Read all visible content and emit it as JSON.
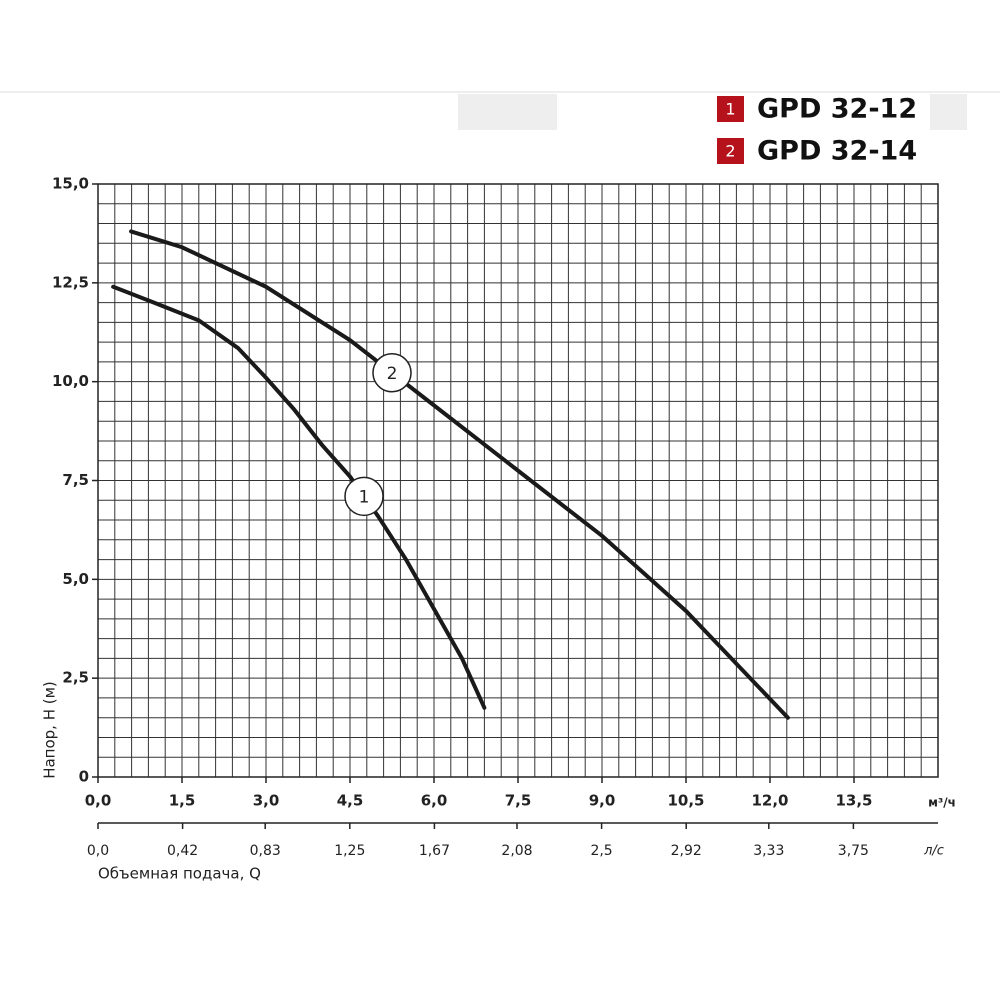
{
  "chart_data": {
    "type": "line",
    "xlabel": "Объемная подача, Q",
    "ylabel": "Напор, H (м)",
    "x_unit": "м³/ч",
    "x2_unit": "л/с",
    "xlim": [
      0,
      15
    ],
    "ylim": [
      0,
      15
    ],
    "x2lim": [
      0,
      4.17
    ],
    "grid": true,
    "legend_position": "top-right",
    "xticks": [
      {
        "value": 0,
        "label": "0,0"
      },
      {
        "value": 1.5,
        "label": "1,5"
      },
      {
        "value": 3,
        "label": "3,0"
      },
      {
        "value": 4.5,
        "label": "4,5"
      },
      {
        "value": 6,
        "label": "6,0"
      },
      {
        "value": 7.5,
        "label": "7,5"
      },
      {
        "value": 9,
        "label": "9,0"
      },
      {
        "value": 10.5,
        "label": "10,5"
      },
      {
        "value": 12,
        "label": "12,0"
      },
      {
        "value": 13.5,
        "label": "13,5"
      }
    ],
    "yticks": [
      {
        "value": 0,
        "label": "0"
      },
      {
        "value": 2.5,
        "label": "2,5"
      },
      {
        "value": 5,
        "label": "5,0"
      },
      {
        "value": 7.5,
        "label": "7,5"
      },
      {
        "value": 10,
        "label": "10,0"
      },
      {
        "value": 12.5,
        "label": "12,5"
      },
      {
        "value": 15,
        "label": "15,0"
      }
    ],
    "x2ticks": [
      {
        "value": 0,
        "label": "0,0"
      },
      {
        "value": 0.42,
        "label": "0,42"
      },
      {
        "value": 0.83,
        "label": "0,83"
      },
      {
        "value": 1.25,
        "label": "1,25"
      },
      {
        "value": 1.67,
        "label": "1,67"
      },
      {
        "value": 2.08,
        "label": "2,08"
      },
      {
        "value": 2.5,
        "label": "2,5"
      },
      {
        "value": 2.92,
        "label": "2,92"
      },
      {
        "value": 3.33,
        "label": "3,33"
      },
      {
        "value": 3.75,
        "label": "3,75"
      }
    ],
    "series": [
      {
        "name": "GPD 32-12",
        "label": "1",
        "color": "#1a1a1a",
        "badge_color": "#b5121b",
        "x": [
          0.27,
          1.0,
          1.8,
          2.5,
          3.0,
          3.5,
          4.0,
          4.5,
          5.0,
          5.5,
          6.0,
          6.5,
          6.9
        ],
        "values": [
          12.4,
          12.0,
          11.55,
          10.85,
          10.1,
          9.3,
          8.4,
          7.6,
          6.6,
          5.5,
          4.25,
          3.0,
          1.75
        ]
      },
      {
        "name": "GPD 32-14",
        "label": "2",
        "color": "#1a1a1a",
        "badge_color": "#b5121b",
        "x": [
          0.59,
          1.5,
          3.0,
          4.5,
          6.0,
          7.5,
          9.0,
          10.5,
          12.32
        ],
        "values": [
          13.8,
          13.4,
          12.4,
          11.05,
          9.4,
          7.75,
          6.1,
          4.2,
          1.5
        ]
      }
    ]
  }
}
